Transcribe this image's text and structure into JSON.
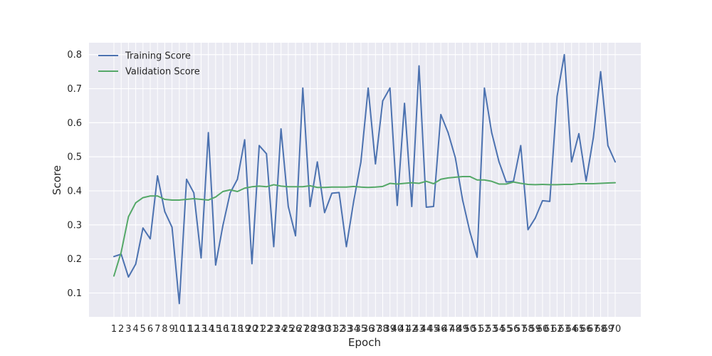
{
  "chart_data": {
    "type": "line",
    "title": "",
    "xlabel": "Epoch",
    "ylabel": "Score",
    "x": [
      1,
      2,
      3,
      4,
      5,
      6,
      7,
      8,
      9,
      10,
      11,
      12,
      13,
      14,
      15,
      16,
      17,
      18,
      19,
      20,
      21,
      22,
      23,
      24,
      25,
      26,
      27,
      28,
      29,
      30,
      31,
      32,
      33,
      34,
      35,
      36,
      37,
      38,
      39,
      40,
      41,
      42,
      43,
      44,
      45,
      46,
      47,
      48,
      49,
      50,
      51,
      52,
      53,
      54,
      55,
      56,
      57,
      58,
      59,
      60,
      61,
      62,
      63,
      64,
      65,
      66,
      67,
      68,
      69,
      70
    ],
    "ylim": [
      0.03,
      0.835
    ],
    "yticks": [
      0.1,
      0.2,
      0.3,
      0.4,
      0.5,
      0.6,
      0.7,
      0.8
    ],
    "ytick_labels": [
      "0.1",
      "0.2",
      "0.3",
      "0.4",
      "0.5",
      "0.6",
      "0.7",
      "0.8"
    ],
    "grid": true,
    "legend_position": "top-left",
    "series": [
      {
        "name": "Training Score",
        "color": "#4c72b0",
        "values": [
          0.207,
          0.214,
          0.147,
          0.185,
          0.291,
          0.259,
          0.444,
          0.339,
          0.293,
          0.069,
          0.434,
          0.394,
          0.203,
          0.571,
          0.182,
          0.298,
          0.394,
          0.434,
          0.55,
          0.186,
          0.533,
          0.509,
          0.236,
          0.582,
          0.354,
          0.268,
          0.702,
          0.354,
          0.485,
          0.336,
          0.393,
          0.395,
          0.236,
          0.369,
          0.485,
          0.702,
          0.479,
          0.664,
          0.702,
          0.357,
          0.657,
          0.354,
          0.767,
          0.352,
          0.354,
          0.624,
          0.571,
          0.497,
          0.373,
          0.28,
          0.205,
          0.702,
          0.571,
          0.486,
          0.426,
          0.428,
          0.533,
          0.286,
          0.32,
          0.371,
          0.369,
          0.677,
          0.8,
          0.485,
          0.568,
          0.429,
          0.557,
          0.75,
          0.533,
          0.485
        ]
      },
      {
        "name": "Validation Score",
        "color": "#55a868",
        "values": [
          0.15,
          0.22,
          0.324,
          0.365,
          0.38,
          0.385,
          0.385,
          0.375,
          0.373,
          0.373,
          0.375,
          0.377,
          0.375,
          0.373,
          0.382,
          0.398,
          0.403,
          0.398,
          0.408,
          0.412,
          0.414,
          0.412,
          0.418,
          0.414,
          0.412,
          0.412,
          0.412,
          0.415,
          0.41,
          0.41,
          0.411,
          0.411,
          0.411,
          0.413,
          0.411,
          0.41,
          0.411,
          0.413,
          0.422,
          0.42,
          0.422,
          0.424,
          0.422,
          0.428,
          0.421,
          0.434,
          0.438,
          0.44,
          0.442,
          0.442,
          0.432,
          0.432,
          0.428,
          0.42,
          0.42,
          0.426,
          0.422,
          0.419,
          0.418,
          0.419,
          0.418,
          0.418,
          0.419,
          0.419,
          0.421,
          0.421,
          0.421,
          0.422,
          0.423,
          0.424
        ]
      }
    ]
  }
}
